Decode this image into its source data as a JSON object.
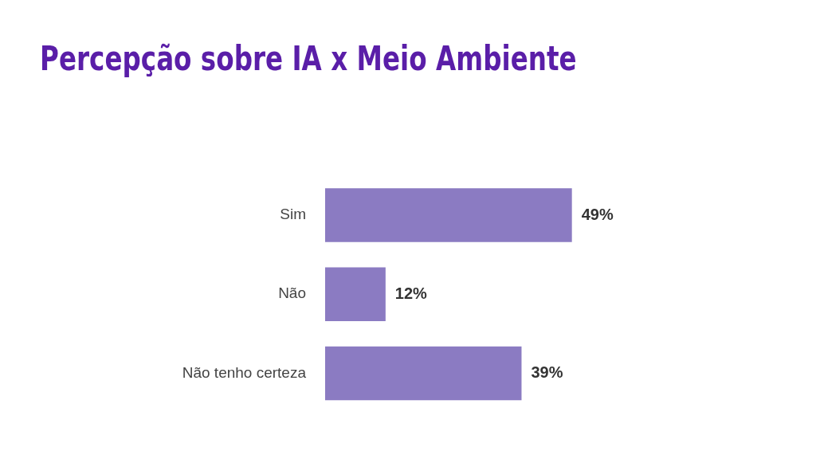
{
  "chart_data": {
    "type": "bar",
    "orientation": "horizontal",
    "title": "Percepção sobre IA x Meio Ambiente",
    "categories": [
      "Sim",
      "Não",
      "Não tenho certeza"
    ],
    "values": [
      49,
      12,
      39
    ],
    "value_labels": [
      "49%",
      "12%",
      "39%"
    ],
    "color": "#8b7bc2"
  }
}
